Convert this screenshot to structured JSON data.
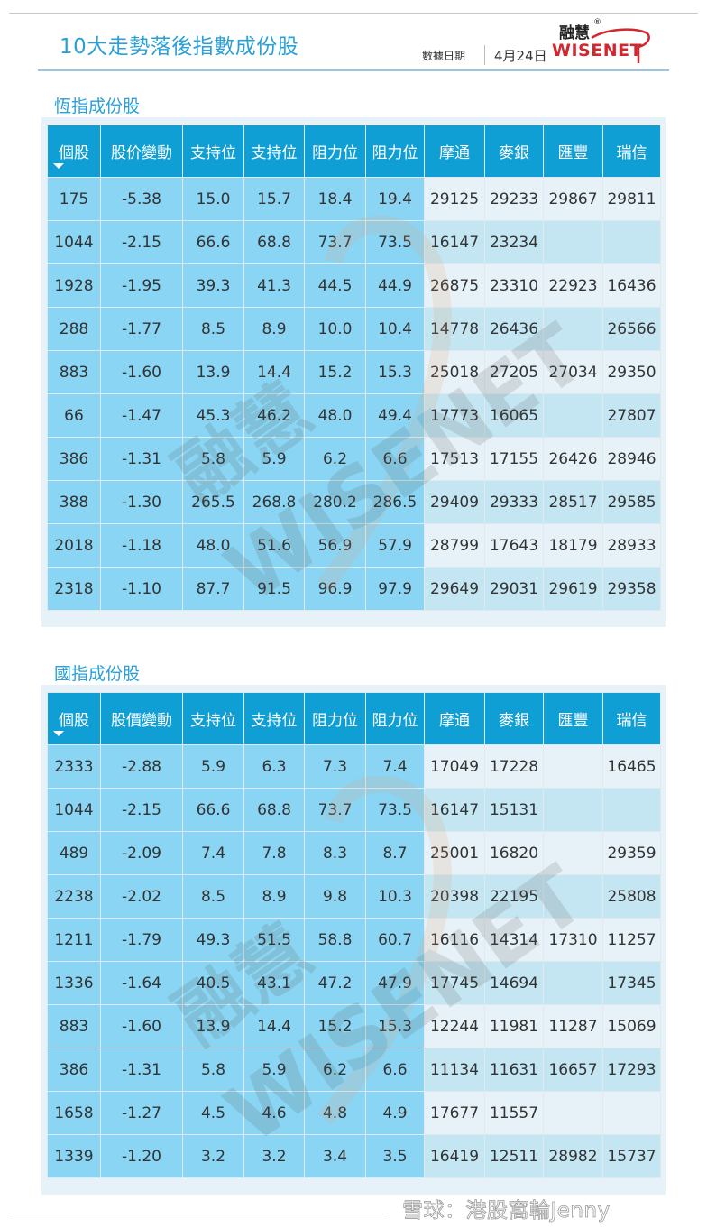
{
  "header": {
    "title": "10大走勢落後指數成份股",
    "date_label": "數據日期",
    "date_value": "4月24日",
    "logo_cn": "融慧",
    "logo_reg": "®",
    "logo_en": "WISENET"
  },
  "colors": {
    "accent": "#2aa0d6",
    "header_bg": "#109fd5",
    "left_cell_bg": "#8ad5f4",
    "right_cell_light": "#e6f2f8",
    "right_cell_dark": "#c4e6f3",
    "logo_red": "#d0282e"
  },
  "tables": [
    {
      "section_title": "恆指成份股",
      "columns": [
        "個股",
        "股价變動",
        "支持位",
        "支持位",
        "阻力位",
        "阻力位",
        "摩通",
        "麥銀",
        "匯豐",
        "瑞信"
      ],
      "rows": [
        [
          "175",
          "-5.38",
          "15.0",
          "15.7",
          "18.4",
          "19.4",
          "29125",
          "29233",
          "29867",
          "29811"
        ],
        [
          "1044",
          "-2.15",
          "66.6",
          "68.8",
          "73.7",
          "73.5",
          "16147",
          "23234",
          "",
          ""
        ],
        [
          "1928",
          "-1.95",
          "39.3",
          "41.3",
          "44.5",
          "44.9",
          "26875",
          "23310",
          "22923",
          "16436"
        ],
        [
          "288",
          "-1.77",
          "8.5",
          "8.9",
          "10.0",
          "10.4",
          "14778",
          "26436",
          "",
          "26566"
        ],
        [
          "883",
          "-1.60",
          "13.9",
          "14.4",
          "15.2",
          "15.3",
          "25018",
          "27205",
          "27034",
          "29350"
        ],
        [
          "66",
          "-1.47",
          "45.3",
          "46.2",
          "48.0",
          "49.4",
          "17773",
          "16065",
          "",
          "27807"
        ],
        [
          "386",
          "-1.31",
          "5.8",
          "5.9",
          "6.2",
          "6.6",
          "17513",
          "17155",
          "26426",
          "28946"
        ],
        [
          "388",
          "-1.30",
          "265.5",
          "268.8",
          "280.2",
          "286.5",
          "29409",
          "29333",
          "28517",
          "29585"
        ],
        [
          "2018",
          "-1.18",
          "48.0",
          "51.6",
          "56.9",
          "57.9",
          "28799",
          "17643",
          "18179",
          "28933"
        ],
        [
          "2318",
          "-1.10",
          "87.7",
          "91.5",
          "96.9",
          "97.9",
          "29649",
          "29031",
          "29619",
          "29358"
        ]
      ]
    },
    {
      "section_title": "國指成份股",
      "columns": [
        "個股",
        "股價變動",
        "支持位",
        "支持位",
        "阻力位",
        "阻力位",
        "摩通",
        "麥銀",
        "匯豐",
        "瑞信"
      ],
      "rows": [
        [
          "2333",
          "-2.88",
          "5.9",
          "6.3",
          "7.3",
          "7.4",
          "17049",
          "17228",
          "",
          "16465"
        ],
        [
          "1044",
          "-2.15",
          "66.6",
          "68.8",
          "73.7",
          "73.5",
          "16147",
          "15131",
          "",
          ""
        ],
        [
          "489",
          "-2.09",
          "7.4",
          "7.8",
          "8.3",
          "8.7",
          "25001",
          "16820",
          "",
          "29359"
        ],
        [
          "2238",
          "-2.02",
          "8.5",
          "8.9",
          "9.8",
          "10.3",
          "20398",
          "22195",
          "",
          "25808"
        ],
        [
          "1211",
          "-1.79",
          "49.3",
          "51.5",
          "58.8",
          "60.7",
          "16116",
          "14314",
          "17310",
          "11257"
        ],
        [
          "1336",
          "-1.64",
          "40.5",
          "43.1",
          "47.2",
          "47.9",
          "17745",
          "14694",
          "",
          "17345"
        ],
        [
          "883",
          "-1.60",
          "13.9",
          "14.4",
          "15.2",
          "15.3",
          "12244",
          "11981",
          "11287",
          "15069"
        ],
        [
          "386",
          "-1.31",
          "5.8",
          "5.9",
          "6.2",
          "6.6",
          "11134",
          "11631",
          "16657",
          "17293"
        ],
        [
          "1658",
          "-1.27",
          "4.5",
          "4.6",
          "4.8",
          "4.9",
          "17677",
          "11557",
          "",
          ""
        ],
        [
          "1339",
          "-1.20",
          "3.2",
          "3.2",
          "3.4",
          "3.5",
          "16419",
          "12511",
          "28982",
          "15737"
        ]
      ]
    }
  ],
  "footer": {
    "text": "雪球：港股窩輪Jenny"
  }
}
